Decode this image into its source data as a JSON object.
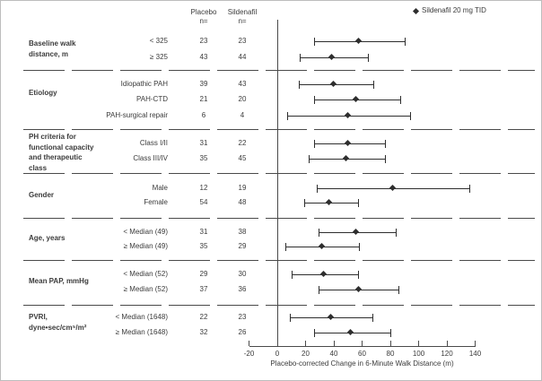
{
  "legend": {
    "marker": "diamond",
    "label": "Sildenafil 20 mg TID"
  },
  "columns": {
    "placebo": "Placebo",
    "sildenafil": "Sildenafil",
    "n": "n="
  },
  "chart_data": {
    "type": "scatter",
    "variant": "forest-plot",
    "xlabel": "Placebo-corrected Change in 6-Minute Walk Distance (m)",
    "xlim": [
      -20,
      140
    ],
    "x_ticks": [
      -20,
      0,
      20,
      40,
      60,
      80,
      100,
      120,
      140
    ],
    "legend_entries": [
      {
        "marker": "diamond",
        "label": "Sildenafil 20 mg TID"
      }
    ],
    "column_headers": [
      "Placebo n=",
      "Sildenafil n="
    ],
    "groups": [
      {
        "label": "Baseline walk\ndistance, m",
        "rows": [
          {
            "label": "< 325",
            "placebo_n": 23,
            "sildenafil_n": 23,
            "estimate": 58,
            "ci_low": 26,
            "ci_high": 90
          },
          {
            "label": "≥ 325",
            "placebo_n": 43,
            "sildenafil_n": 44,
            "estimate": 39,
            "ci_low": 16,
            "ci_high": 64
          }
        ]
      },
      {
        "label": "Etiology",
        "rows": [
          {
            "label": "Idiopathic PAH",
            "placebo_n": 39,
            "sildenafil_n": 43,
            "estimate": 40,
            "ci_low": 15,
            "ci_high": 68
          },
          {
            "label": "PAH-CTD",
            "placebo_n": 21,
            "sildenafil_n": 20,
            "estimate": 56,
            "ci_low": 26,
            "ci_high": 87
          },
          {
            "label": "PAH-surgical repair",
            "placebo_n": 6,
            "sildenafil_n": 4,
            "estimate": 50,
            "ci_low": 7,
            "ci_high": 94
          }
        ]
      },
      {
        "label": "PH criteria for\nfunctional capacity\nand therapeutic\nclass",
        "rows": [
          {
            "label": "Class I/II",
            "placebo_n": 31,
            "sildenafil_n": 22,
            "estimate": 50,
            "ci_low": 26,
            "ci_high": 76
          },
          {
            "label": "Class III/IV",
            "placebo_n": 35,
            "sildenafil_n": 45,
            "estimate": 49,
            "ci_low": 22,
            "ci_high": 76
          }
        ]
      },
      {
        "label": "Gender",
        "rows": [
          {
            "label": "Male",
            "placebo_n": 12,
            "sildenafil_n": 19,
            "estimate": 82,
            "ci_low": 28,
            "ci_high": 136
          },
          {
            "label": "Female",
            "placebo_n": 54,
            "sildenafil_n": 48,
            "estimate": 37,
            "ci_low": 19,
            "ci_high": 57
          }
        ]
      },
      {
        "label": "Age, years",
        "rows": [
          {
            "label": "< Median (49)",
            "placebo_n": 31,
            "sildenafil_n": 38,
            "estimate": 56,
            "ci_low": 29,
            "ci_high": 84
          },
          {
            "label": "≥ Median (49)",
            "placebo_n": 35,
            "sildenafil_n": 29,
            "estimate": 32,
            "ci_low": 6,
            "ci_high": 58
          }
        ]
      },
      {
        "label": "Mean PAP, mmHg",
        "rows": [
          {
            "label": "< Median (52)",
            "placebo_n": 29,
            "sildenafil_n": 30,
            "estimate": 33,
            "ci_low": 10,
            "ci_high": 57
          },
          {
            "label": "≥ Median (52)",
            "placebo_n": 37,
            "sildenafil_n": 36,
            "estimate": 58,
            "ci_low": 29,
            "ci_high": 86
          }
        ]
      },
      {
        "label": "PVRI,\ndyne•sec/cm⁵/m²",
        "rows": [
          {
            "label": "< Median (1648)",
            "placebo_n": 22,
            "sildenafil_n": 23,
            "estimate": 38,
            "ci_low": 9,
            "ci_high": 67
          },
          {
            "label": "≥ Median (1648)",
            "placebo_n": 32,
            "sildenafil_n": 26,
            "estimate": 52,
            "ci_low": 26,
            "ci_high": 80
          }
        ]
      }
    ]
  }
}
